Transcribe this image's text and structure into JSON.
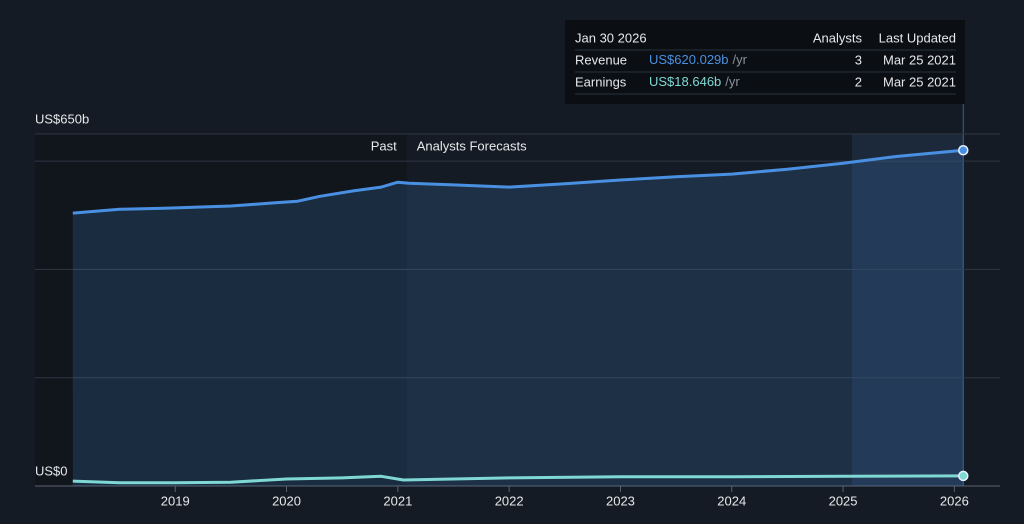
{
  "chart_data": {
    "type": "line",
    "x_unit": "year",
    "xlim": [
      2017.74,
      2026.41
    ],
    "xticks": [
      2019,
      2020,
      2021,
      2022,
      2023,
      2024,
      2025,
      2026
    ],
    "ylim": [
      0,
      650
    ],
    "yticks": [
      {
        "value": 0,
        "label": "US$0"
      },
      {
        "value": 650,
        "label": "US$650b"
      }
    ],
    "gridlines": [
      200,
      400,
      600,
      650
    ],
    "forecast_start": 2021.08,
    "past_label": "Past",
    "forecast_label": "Analysts Forecasts",
    "series": [
      {
        "name": "Revenue",
        "color": "#4a90e2",
        "x": [
          2018.08,
          2018.5,
          2018.9,
          2019.5,
          2019.9,
          2020.1,
          2020.3,
          2020.6,
          2020.85,
          2021.0,
          2021.1,
          2021.5,
          2022.0,
          2022.5,
          2023.0,
          2023.5,
          2024.0,
          2024.5,
          2025.0,
          2025.5,
          2026.08
        ],
        "values": [
          504,
          511,
          513,
          517,
          523,
          526,
          535,
          545,
          552,
          561,
          559,
          556,
          552,
          558,
          565,
          571,
          576,
          585,
          596,
          609,
          620.029
        ]
      },
      {
        "name": "Earnings",
        "color": "#7fd8d4",
        "x": [
          2018.08,
          2018.5,
          2019.0,
          2019.5,
          2020.0,
          2020.5,
          2020.85,
          2021.05,
          2022.0,
          2023.0,
          2024.0,
          2025.0,
          2026.08
        ],
        "values": [
          9,
          6,
          6,
          7,
          13,
          15,
          18,
          11,
          15,
          17,
          17,
          18,
          18.646
        ]
      }
    ],
    "tooltip": {
      "date": "Jan 30 2026",
      "columns": [
        "Analysts",
        "Last Updated"
      ],
      "rows": [
        {
          "name": "Revenue",
          "value_label": "US$620.029b",
          "unit": "/yr",
          "analysts": 3,
          "updated": "Mar 25 2021"
        },
        {
          "name": "Earnings",
          "value_label": "US$18.646b",
          "unit": "/yr",
          "analysts": 2,
          "updated": "Mar 25 2021"
        }
      ]
    }
  }
}
